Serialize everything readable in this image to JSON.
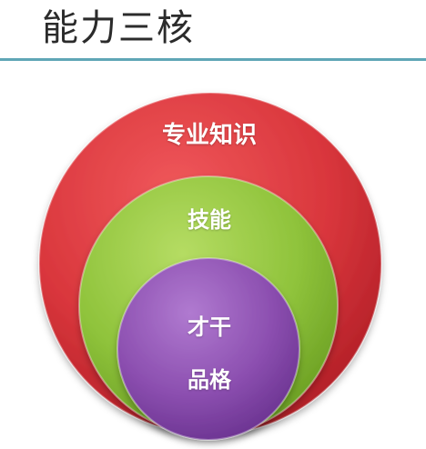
{
  "title": "能力三核",
  "colors": {
    "rule": "#5fa6b6",
    "outer_circle": "#d9363c",
    "middle_circle": "#8fc33b",
    "inner_circle": "#8c4fb0",
    "label_text": "#ffffff"
  },
  "circles": [
    {
      "name": "outer",
      "labels": [
        "专业知识"
      ]
    },
    {
      "name": "middle",
      "labels": [
        "技能"
      ]
    },
    {
      "name": "inner",
      "labels": [
        "才干",
        "品格"
      ]
    }
  ]
}
